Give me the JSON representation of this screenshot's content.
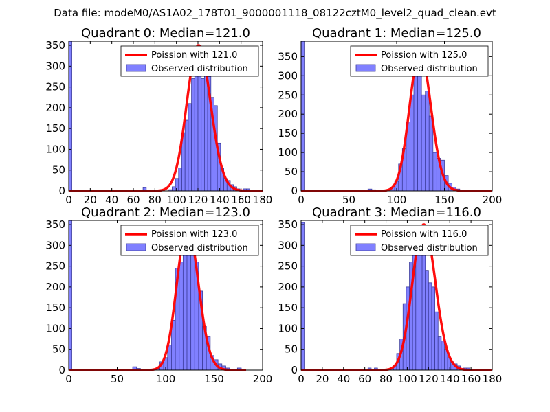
{
  "suptitle": "Data file: modeM0/AS1A02_178T01_9000001118_08122cztM0_level2_quad_clean.evt",
  "colors": {
    "bar_fill": "#8080ff",
    "bar_edge": "#3c3c9c",
    "curve": "#ff0000",
    "background": "#ffffff"
  },
  "chart_data": [
    {
      "type": "bar",
      "title": "Quadrant 0: Median=121.0",
      "xlim": [
        0,
        180
      ],
      "ylim": [
        0,
        360
      ],
      "xticks": [
        0,
        20,
        40,
        60,
        80,
        100,
        120,
        140,
        160,
        180
      ],
      "yticks": [
        0,
        50,
        100,
        150,
        200,
        250,
        300,
        350
      ],
      "legend": {
        "position": "top-right",
        "curve_label": "Poission with 121.0",
        "bars_label": "Observed distribution"
      },
      "bins": [
        {
          "x0": 0,
          "x1": 2.9,
          "v": 360
        },
        {
          "x0": 69,
          "x1": 72,
          "v": 8
        },
        {
          "x0": 93,
          "x1": 96,
          "v": 3
        },
        {
          "x0": 96,
          "x1": 99,
          "v": 10
        },
        {
          "x0": 99,
          "x1": 102,
          "v": 30
        },
        {
          "x0": 102,
          "x1": 105,
          "v": 55
        },
        {
          "x0": 105,
          "x1": 108,
          "v": 140
        },
        {
          "x0": 108,
          "x1": 111,
          "v": 170
        },
        {
          "x0": 111,
          "x1": 114,
          "v": 210
        },
        {
          "x0": 114,
          "x1": 117,
          "v": 270
        },
        {
          "x0": 117,
          "x1": 120,
          "v": 310
        },
        {
          "x0": 120,
          "x1": 123,
          "v": 350
        },
        {
          "x0": 123,
          "x1": 126,
          "v": 270
        },
        {
          "x0": 126,
          "x1": 129,
          "v": 330
        },
        {
          "x0": 129,
          "x1": 132,
          "v": 275
        },
        {
          "x0": 132,
          "x1": 135,
          "v": 225
        },
        {
          "x0": 135,
          "x1": 138,
          "v": 205
        },
        {
          "x0": 138,
          "x1": 141,
          "v": 115
        },
        {
          "x0": 141,
          "x1": 144,
          "v": 55
        },
        {
          "x0": 144,
          "x1": 147,
          "v": 30
        },
        {
          "x0": 147,
          "x1": 150,
          "v": 25
        },
        {
          "x0": 150,
          "x1": 153,
          "v": 15
        },
        {
          "x0": 153,
          "x1": 156,
          "v": 10
        },
        {
          "x0": 156,
          "x1": 159,
          "v": 5
        },
        {
          "x0": 162,
          "x1": 165,
          "v": 5
        },
        {
          "x0": 165,
          "x1": 168,
          "v": 5
        }
      ],
      "curve": {
        "mean": 121.0,
        "peak": 350,
        "x_from": 0,
        "x_to": 180
      }
    },
    {
      "type": "bar",
      "title": "Quadrant 1: Median=125.0",
      "xlim": [
        0,
        200
      ],
      "ylim": [
        0,
        390
      ],
      "xticks": [
        0,
        50,
        100,
        150,
        200
      ],
      "yticks": [
        0,
        50,
        100,
        150,
        200,
        250,
        300,
        350
      ],
      "legend": {
        "position": "top-right",
        "curve_label": "Poission with 125.0",
        "bars_label": "Observed distribution"
      },
      "bins": [
        {
          "x0": 0,
          "x1": 3.2,
          "v": 390
        },
        {
          "x0": 70,
          "x1": 74,
          "v": 5
        },
        {
          "x0": 74,
          "x1": 78,
          "v": 3
        },
        {
          "x0": 94,
          "x1": 98,
          "v": 10
        },
        {
          "x0": 98,
          "x1": 102,
          "v": 25
        },
        {
          "x0": 102,
          "x1": 106,
          "v": 70
        },
        {
          "x0": 106,
          "x1": 110,
          "v": 110
        },
        {
          "x0": 110,
          "x1": 114,
          "v": 180
        },
        {
          "x0": 114,
          "x1": 118,
          "v": 250
        },
        {
          "x0": 118,
          "x1": 122,
          "v": 330
        },
        {
          "x0": 122,
          "x1": 126,
          "v": 355
        },
        {
          "x0": 126,
          "x1": 130,
          "v": 250
        },
        {
          "x0": 130,
          "x1": 134,
          "v": 260
        },
        {
          "x0": 134,
          "x1": 138,
          "v": 195
        },
        {
          "x0": 138,
          "x1": 142,
          "v": 100
        },
        {
          "x0": 142,
          "x1": 146,
          "v": 85
        },
        {
          "x0": 146,
          "x1": 150,
          "v": 80
        },
        {
          "x0": 150,
          "x1": 154,
          "v": 40
        },
        {
          "x0": 154,
          "x1": 158,
          "v": 20
        },
        {
          "x0": 158,
          "x1": 162,
          "v": 10
        },
        {
          "x0": 162,
          "x1": 166,
          "v": 5
        }
      ],
      "curve": {
        "mean": 125.0,
        "peak": 362,
        "x_from": 0,
        "x_to": 200
      }
    },
    {
      "type": "bar",
      "title": "Quadrant 2: Median=123.0",
      "xlim": [
        0,
        200
      ],
      "ylim": [
        0,
        360
      ],
      "xticks": [
        0,
        50,
        100,
        150,
        200
      ],
      "yticks": [
        0,
        50,
        100,
        150,
        200,
        250,
        300,
        350
      ],
      "legend": {
        "position": "top-right",
        "curve_label": "Poission with 123.0",
        "bars_label": "Observed distribution"
      },
      "bins": [
        {
          "x0": 0,
          "x1": 3.2,
          "v": 360
        },
        {
          "x0": 66,
          "x1": 70,
          "v": 8
        },
        {
          "x0": 70,
          "x1": 74,
          "v": 4
        },
        {
          "x0": 90,
          "x1": 94,
          "v": 5
        },
        {
          "x0": 94,
          "x1": 98,
          "v": 20
        },
        {
          "x0": 98,
          "x1": 102,
          "v": 30
        },
        {
          "x0": 102,
          "x1": 106,
          "v": 60
        },
        {
          "x0": 106,
          "x1": 110,
          "v": 120
        },
        {
          "x0": 110,
          "x1": 114,
          "v": 245
        },
        {
          "x0": 114,
          "x1": 118,
          "v": 260
        },
        {
          "x0": 118,
          "x1": 122,
          "v": 330
        },
        {
          "x0": 122,
          "x1": 126,
          "v": 340
        },
        {
          "x0": 126,
          "x1": 130,
          "v": 280
        },
        {
          "x0": 130,
          "x1": 134,
          "v": 260
        },
        {
          "x0": 134,
          "x1": 138,
          "v": 190
        },
        {
          "x0": 138,
          "x1": 142,
          "v": 105
        },
        {
          "x0": 142,
          "x1": 146,
          "v": 80
        },
        {
          "x0": 146,
          "x1": 150,
          "v": 35
        },
        {
          "x0": 150,
          "x1": 154,
          "v": 25
        },
        {
          "x0": 154,
          "x1": 158,
          "v": 15
        },
        {
          "x0": 158,
          "x1": 162,
          "v": 10
        },
        {
          "x0": 162,
          "x1": 166,
          "v": 5
        },
        {
          "x0": 174,
          "x1": 178,
          "v": 5
        }
      ],
      "curve": {
        "mean": 123.0,
        "peak": 345,
        "x_from": 0,
        "x_to": 183
      }
    },
    {
      "type": "bar",
      "title": "Quadrant 3: Median=116.0",
      "xlim": [
        0,
        180
      ],
      "ylim": [
        0,
        360
      ],
      "xticks": [
        0,
        20,
        40,
        60,
        80,
        100,
        120,
        140,
        160,
        180
      ],
      "yticks": [
        0,
        50,
        100,
        150,
        200,
        250,
        300,
        350
      ],
      "legend": {
        "position": "top-right",
        "curve_label": "Poission with 116.0",
        "bars_label": "Observed distribution"
      },
      "bins": [
        {
          "x0": 0,
          "x1": 2.9,
          "v": 355
        },
        {
          "x0": 63,
          "x1": 66,
          "v": 5
        },
        {
          "x0": 69,
          "x1": 72,
          "v": 5
        },
        {
          "x0": 84,
          "x1": 87,
          "v": 5
        },
        {
          "x0": 87,
          "x1": 90,
          "v": 10
        },
        {
          "x0": 90,
          "x1": 93,
          "v": 40
        },
        {
          "x0": 93,
          "x1": 96,
          "v": 75
        },
        {
          "x0": 96,
          "x1": 99,
          "v": 160
        },
        {
          "x0": 99,
          "x1": 102,
          "v": 200
        },
        {
          "x0": 102,
          "x1": 105,
          "v": 260
        },
        {
          "x0": 105,
          "x1": 108,
          "v": 330
        },
        {
          "x0": 108,
          "x1": 111,
          "v": 340
        },
        {
          "x0": 111,
          "x1": 114,
          "v": 280
        },
        {
          "x0": 114,
          "x1": 117,
          "v": 320
        },
        {
          "x0": 117,
          "x1": 120,
          "v": 240
        },
        {
          "x0": 120,
          "x1": 123,
          "v": 210
        },
        {
          "x0": 123,
          "x1": 126,
          "v": 200
        },
        {
          "x0": 126,
          "x1": 129,
          "v": 140
        },
        {
          "x0": 129,
          "x1": 132,
          "v": 80
        },
        {
          "x0": 132,
          "x1": 135,
          "v": 70
        },
        {
          "x0": 135,
          "x1": 138,
          "v": 50
        },
        {
          "x0": 138,
          "x1": 141,
          "v": 30
        },
        {
          "x0": 141,
          "x1": 144,
          "v": 20
        },
        {
          "x0": 144,
          "x1": 147,
          "v": 15
        },
        {
          "x0": 147,
          "x1": 150,
          "v": 10
        },
        {
          "x0": 153,
          "x1": 156,
          "v": 5
        },
        {
          "x0": 156,
          "x1": 159,
          "v": 5
        }
      ],
      "curve": {
        "mean": 116.0,
        "peak": 350,
        "x_from": 0,
        "x_to": 180
      }
    }
  ]
}
